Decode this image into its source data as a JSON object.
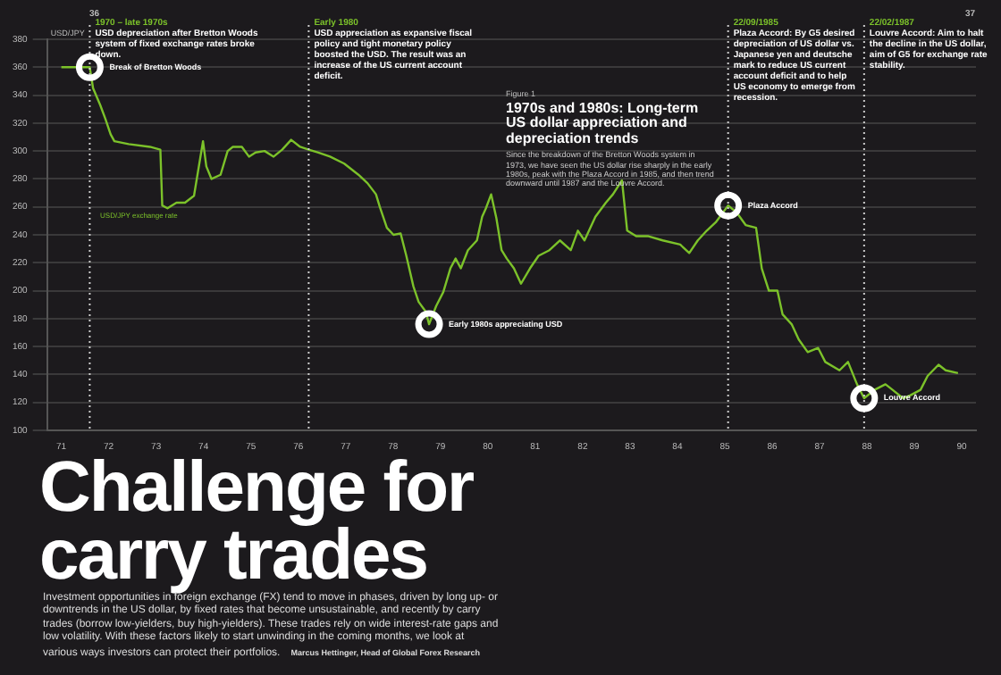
{
  "chart_data": {
    "type": "line",
    "title": "1970s and 1980s: Long-term US dollar appreciation and depreciation trends",
    "subtitle": "Since the breakdown of the Bretton Woods system in 1973, we have seen the US dollar rise sharply in the early 1980s, peak with the Plaza Accord in 1985, and then trend downward until 1987 and the Louvre Accord.",
    "ylabel": "USD/JPY",
    "x": [
      1971.0,
      1971.6,
      1971.67,
      1971.82,
      1971.93,
      1972.04,
      1972.12,
      1972.42,
      1972.87,
      1973.09,
      1973.13,
      1973.24,
      1973.43,
      1973.61,
      1973.8,
      1973.99,
      1974.06,
      1974.17,
      1974.36,
      1974.51,
      1974.62,
      1974.81,
      1974.96,
      1975.1,
      1975.29,
      1975.48,
      1975.66,
      1975.85,
      1976.04,
      1976.22,
      1976.41,
      1976.67,
      1976.97,
      1977.27,
      1977.46,
      1977.64,
      1977.72,
      1977.87,
      1978.01,
      1978.16,
      1978.28,
      1978.43,
      1978.54,
      1978.69,
      1978.76,
      1978.91,
      1979.06,
      1979.21,
      1979.32,
      1979.43,
      1979.58,
      1979.77,
      1979.88,
      1979.96,
      1980.07,
      1980.18,
      1980.29,
      1980.4,
      1980.55,
      1980.7,
      1980.89,
      1981.07,
      1981.3,
      1981.52,
      1981.75,
      1981.9,
      1982.04,
      1982.27,
      1982.49,
      1982.64,
      1982.83,
      1982.94,
      1983.13,
      1983.39,
      1983.69,
      1984.06,
      1984.25,
      1984.43,
      1984.62,
      1984.81,
      1985.07,
      1985.25,
      1985.44,
      1985.66,
      1985.78,
      1985.93,
      1986.11,
      1986.22,
      1986.41,
      1986.56,
      1986.75,
      1986.97,
      1987.12,
      1987.42,
      1987.6,
      1987.79,
      1987.94,
      1988.16,
      1988.39,
      1988.54,
      1988.76,
      1988.91,
      1989.13,
      1989.28,
      1989.51,
      1989.66,
      1989.92
    ],
    "series": [
      {
        "name": "USD/JPY exchange rate",
        "color": "#7cc22a",
        "values": [
          360,
          360,
          345,
          333,
          323,
          312,
          307,
          305,
          303,
          301,
          261,
          259,
          263,
          263,
          268,
          307,
          289,
          280,
          283,
          300,
          303,
          303,
          296,
          299,
          300,
          296,
          301,
          308,
          303,
          301,
          299,
          296,
          291,
          283,
          277,
          269,
          260,
          245,
          240,
          241,
          225,
          203,
          192,
          185,
          176,
          189,
          199,
          216,
          223,
          216,
          229,
          236,
          253,
          259,
          269,
          252,
          229,
          223,
          216,
          205,
          216,
          225,
          229,
          236,
          229,
          243,
          236,
          253,
          263,
          269,
          279,
          243,
          239,
          239,
          236,
          233,
          227,
          236,
          243,
          249,
          261,
          256,
          247,
          245,
          216,
          200,
          200,
          183,
          176,
          165,
          156,
          159,
          149,
          143,
          149,
          133,
          123,
          129,
          133,
          129,
          123,
          125,
          129,
          139,
          147,
          143,
          141
        ]
      }
    ],
    "xlim": [
      1970.7,
      1990.3
    ],
    "xticks": [
      {
        "value": 1971,
        "label": "71"
      },
      {
        "value": 1972,
        "label": "72"
      },
      {
        "value": 1973,
        "label": "73"
      },
      {
        "value": 1974,
        "label": "74"
      },
      {
        "value": 1975,
        "label": "75"
      },
      {
        "value": 1976,
        "label": "76"
      },
      {
        "value": 1977,
        "label": "77"
      },
      {
        "value": 1978,
        "label": "78"
      },
      {
        "value": 1979,
        "label": "79"
      },
      {
        "value": 1980,
        "label": "80"
      },
      {
        "value": 1981,
        "label": "81"
      },
      {
        "value": 1982,
        "label": "82"
      },
      {
        "value": 1983,
        "label": "83"
      },
      {
        "value": 1984,
        "label": "84"
      },
      {
        "value": 1985,
        "label": "85"
      },
      {
        "value": 1986,
        "label": "86"
      },
      {
        "value": 1987,
        "label": "87"
      },
      {
        "value": 1988,
        "label": "88"
      },
      {
        "value": 1989,
        "label": "89"
      },
      {
        "value": 1990,
        "label": "90"
      }
    ],
    "ylim": [
      100,
      380
    ],
    "yticks": [
      100,
      120,
      140,
      160,
      180,
      200,
      220,
      240,
      260,
      280,
      300,
      320,
      340,
      360,
      380
    ],
    "grid": "y",
    "legend": false,
    "marker": "none",
    "line_style": "solid",
    "ref_lines": [
      {
        "axis": "x",
        "value": 1971.6,
        "label": "1970 – late 1970s\nUSD depreciation after Bretton Woods system of fixed exchange rates broke down.",
        "color": "#cccccc",
        "line_style": "dotted"
      },
      {
        "axis": "x",
        "value": 1976.22,
        "label": "Early 1980\nUSD appreciation as expansive fiscal policy and tight monetary policy boosted the USD. The result was an increase of the US current account deficit.",
        "color": "#cccccc",
        "line_style": "dotted"
      },
      {
        "axis": "x",
        "value": 1985.07,
        "label": "22/09/1985\nPlaza Accord: By G5 desired depreciation of US dollar vs. Japanese yen and deutsche mark to reduce US current account deficit and to help US economy to emerge from recession.",
        "color": "#cccccc",
        "line_style": "dotted"
      },
      {
        "axis": "x",
        "value": 1987.94,
        "label": "22/02/1987\nLouvre Accord: Aim to halt the decline in the US dollar, aim of G5 for exchange rate stability.",
        "color": "#cccccc",
        "line_style": "dotted"
      }
    ],
    "annotations": [
      {
        "text": "Break of Bretton Woods",
        "x": 1971.6,
        "y": 360
      },
      {
        "text": "Early 1980s appreciating USD",
        "x": 1978.76,
        "y": 176
      },
      {
        "text": "Plaza Accord",
        "x": 1985.07,
        "y": 261
      },
      {
        "text": "Louvre Accord",
        "x": 1987.94,
        "y": 123
      },
      "36",
      "37",
      "Figure 1",
      "Challenge for carry trades",
      "Investment opportunities in foreign exchange (FX) tend to move in phases, driven by long up- or downtrends in the US dollar, by fixed rates that become unsustainable, and recently by carry trades (borrow low-yielders, buy high-yielders). These trades rely on wide interest-rate gaps and low volatility. With these factors likely to start unwinding in the coming months, we look at various ways investors can protect their portfolios.",
      "Marcus Hettinger, Head of Global Forex Research"
    ]
  }
}
